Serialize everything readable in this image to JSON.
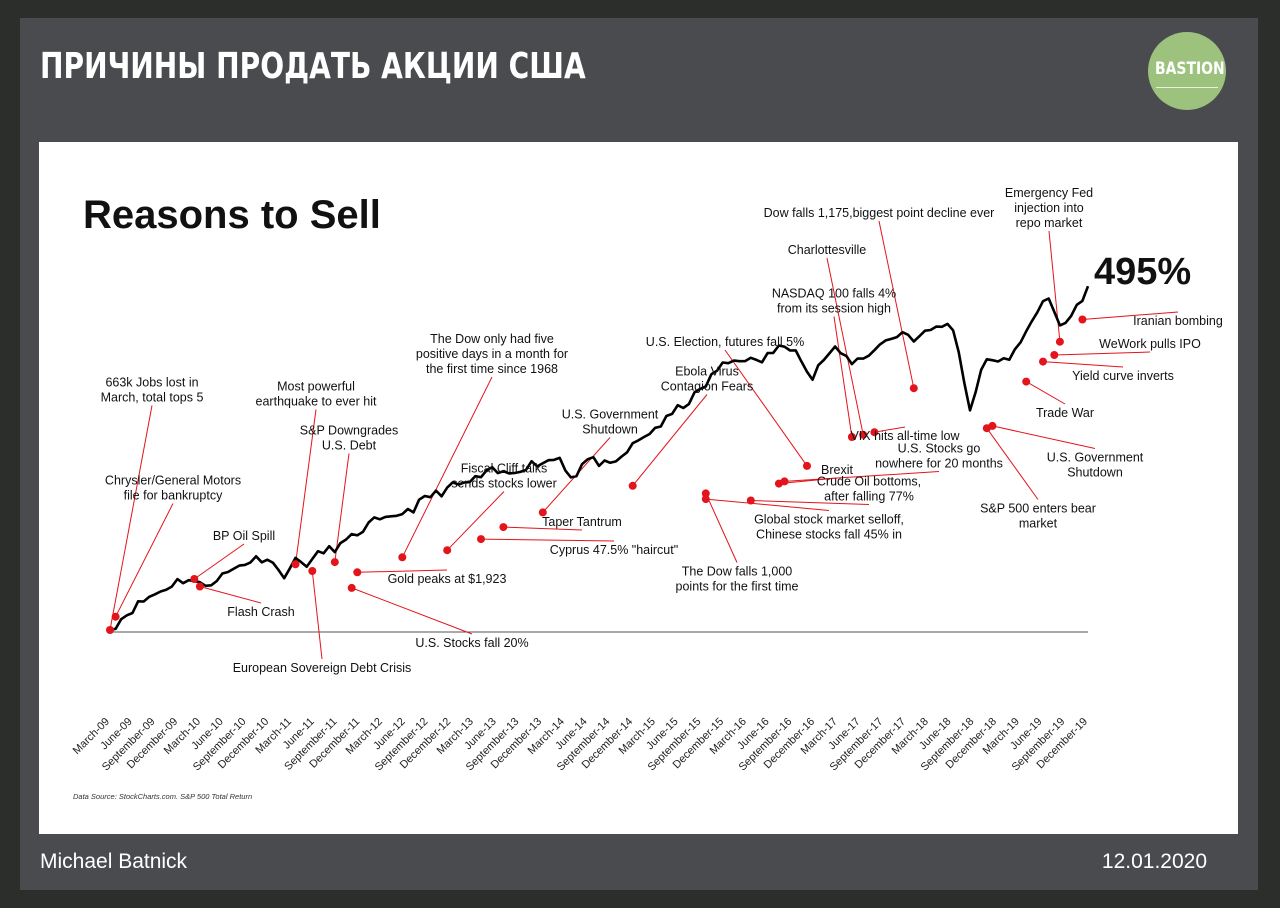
{
  "header": {
    "title": "ПРИЧИНЫ ПРОДАТЬ АКЦИИ США",
    "logo_text": "BASTION"
  },
  "footer": {
    "author": "Michael Batnick",
    "date": "12.01.2020"
  },
  "colors": {
    "background": "#2c2e2b",
    "frame": "#4a4b4e",
    "logo": "#9cc27e",
    "line": "#000000",
    "marker": "#e3141b"
  },
  "chart_data": {
    "type": "line",
    "title": "Reasons to Sell",
    "total_return_label": "495%",
    "source": "Data Source: StockCharts.com. S&P 500 Total Return",
    "series": [
      {
        "name": "S&P 500 Total Return",
        "values": [
          0,
          30,
          55,
          75,
          90,
          110,
          115,
          98,
          115,
          130,
          150,
          160,
          165,
          120,
          155,
          150,
          175,
          185,
          200,
          225,
          245,
          245,
          265,
          275,
          300,
          310,
          325,
          330,
          345,
          358,
          350,
          365,
          375,
          380,
          390,
          340,
          385,
          378,
          365,
          400,
          425,
          450,
          470,
          500,
          520,
          550,
          590,
          605,
          615,
          600,
          625,
          640,
          640,
          560,
          612,
          632,
          605,
          612,
          640,
          655,
          672,
          655,
          675,
          690,
          675,
          490,
          595,
          615,
          600,
          660,
          715,
          745,
          680,
          720,
          775
        ]
      }
    ],
    "x_ticks": [
      "March-09",
      "June-09",
      "September-09",
      "December-09",
      "March-10",
      "June-10",
      "September-10",
      "December-10",
      "March-11",
      "June-11",
      "September-11",
      "December-11",
      "March-12",
      "June-12",
      "September-12",
      "December-12",
      "March-13",
      "June-13",
      "September-13",
      "December-13",
      "March-14",
      "June-14",
      "September-14",
      "December-14",
      "March-15",
      "June-15",
      "September-15",
      "December-15",
      "March-16",
      "June-16",
      "September-16",
      "December-16",
      "March-17",
      "June-17",
      "September-17",
      "December-17",
      "March-18",
      "June-18",
      "September-18",
      "December-18",
      "March-19",
      "June-19",
      "September-19",
      "December-19"
    ],
    "annotations": [
      {
        "lines": [
          "663k Jobs lost in",
          "March, total tops 5"
        ],
        "x": 0,
        "y": 0
      },
      {
        "lines": [
          "Chrysler/General Motors",
          "file for bankruptcy"
        ],
        "x": 1,
        "y": 30
      },
      {
        "lines": [
          "BP Oil Spill"
        ],
        "x": 15,
        "y": 115
      },
      {
        "lines": [
          "Flash Crash"
        ],
        "x": 16,
        "y": 98
      },
      {
        "lines": [
          "Most powerful",
          "earthquake to ever hit"
        ],
        "x": 33,
        "y": 148
      },
      {
        "lines": [
          "European Sovereign Debt Crisis"
        ],
        "x": 36,
        "y": 133
      },
      {
        "lines": [
          "S&P Downgrades",
          "U.S. Debt"
        ],
        "x": 40,
        "y": 153
      },
      {
        "lines": [
          "U.S. Stocks fall 20%"
        ],
        "x": 43,
        "y": 95
      },
      {
        "lines": [
          "Gold peaks at $1,923"
        ],
        "x": 44,
        "y": 130
      },
      {
        "lines": [
          "The Dow only had five",
          "positive days in a month for",
          "the first time since 1968"
        ],
        "x": 52,
        "y": 164
      },
      {
        "lines": [
          "Fiscal Cliff talks",
          "sends stocks lower"
        ],
        "x": 60,
        "y": 180
      },
      {
        "lines": [
          "Cyprus 47.5% \"haircut\""
        ],
        "x": 66,
        "y": 205
      },
      {
        "lines": [
          "Taper Tantrum"
        ],
        "x": 70,
        "y": 232
      },
      {
        "lines": [
          "U.S. Government",
          "Shutdown"
        ],
        "x": 77,
        "y": 265
      },
      {
        "lines": [
          "Ebola Virus",
          "Contagion Fears"
        ],
        "x": 93,
        "y": 325
      },
      {
        "lines": [
          "The Dow falls 1,000",
          "points for the first time"
        ],
        "x": 106,
        "y": 308
      },
      {
        "lines": [
          "Global stock market selloff,",
          "Chinese stocks fall 45% in"
        ],
        "x": 106,
        "y": 295
      },
      {
        "lines": [
          "Crude Oil bottoms,",
          "after falling 77%"
        ],
        "x": 114,
        "y": 292
      },
      {
        "lines": [
          "U.S. Election, futures fall 5%"
        ],
        "x": 124,
        "y": 370
      },
      {
        "lines": [
          "Brexit"
        ],
        "x": 119,
        "y": 330
      },
      {
        "lines": [
          "NASDAQ 100 falls 4%",
          "from its  session high"
        ],
        "x": 132,
        "y": 435
      },
      {
        "lines": [
          "Charlottesville"
        ],
        "x": 134,
        "y": 440
      },
      {
        "lines": [
          "VIX hits all-time low"
        ],
        "x": 136,
        "y": 446
      },
      {
        "lines": [
          "Dow falls 1,175,biggest point decline ever"
        ],
        "x": 143,
        "y": 545
      },
      {
        "lines": [
          "U.S. Stocks go",
          "nowhere for 20 months"
        ],
        "x": 120,
        "y": 335
      },
      {
        "lines": [
          "S&P 500 enters bear",
          "market"
        ],
        "x": 156,
        "y": 455
      },
      {
        "lines": [
          "U.S. Government",
          "Shutdown"
        ],
        "x": 157,
        "y": 460
      },
      {
        "lines": [
          "Trade War"
        ],
        "x": 163,
        "y": 560
      },
      {
        "lines": [
          "Yield curve inverts"
        ],
        "x": 166,
        "y": 605
      },
      {
        "lines": [
          "WeWork pulls IPO"
        ],
        "x": 168,
        "y": 620
      },
      {
        "lines": [
          "Emergency Fed",
          "injection into",
          "repo market"
        ],
        "x": 169,
        "y": 650
      },
      {
        "lines": [
          "Iranian bombing"
        ],
        "x": 173,
        "y": 700
      }
    ]
  }
}
